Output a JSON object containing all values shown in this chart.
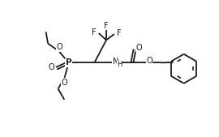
{
  "bg_color": "#ffffff",
  "line_color": "#1a1a1a",
  "line_width": 1.3,
  "font_size": 7.0,
  "figsize": [
    2.7,
    1.69
  ],
  "dpi": 100,
  "xlim": [
    0,
    10
  ],
  "ylim": [
    0,
    6.26
  ]
}
